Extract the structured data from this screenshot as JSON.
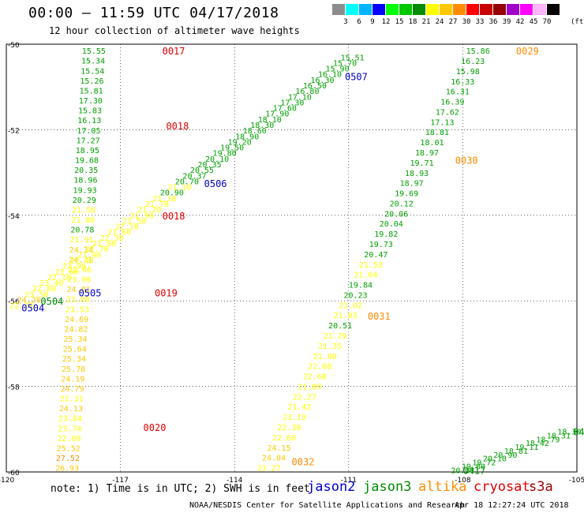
{
  "title": "00:00 – 11:59 UTC 04/17/2018",
  "subtitle": "12 hour collection of altimeter wave heights",
  "color_scale": {
    "labels": [
      "3",
      "6",
      "9",
      "12",
      "15",
      "18",
      "21",
      "24",
      "27",
      "30",
      "33",
      "36",
      "39",
      "42",
      "45",
      "70"
    ],
    "unit": "(ft)",
    "colors": [
      "#8c8c8c",
      "#00ffff",
      "#00b4ff",
      "#0000ff",
      "#00ff00",
      "#00c800",
      "#008c00",
      "#ffff00",
      "#ffc800",
      "#ff8c00",
      "#ff0000",
      "#c80000",
      "#960000",
      "#a000c8",
      "#ff00ff",
      "#ffb4ff",
      "#000000"
    ]
  },
  "note": "note: 1) Time is in UTC; 2) SWH is in feet",
  "satellites": [
    {
      "name": "jason2",
      "color": "#0000cc"
    },
    {
      "name": "jason3",
      "color": "#008c00"
    },
    {
      "name": "altika",
      "color": "#ff8c00"
    },
    {
      "name": "cryosat",
      "color": "#e00000"
    },
    {
      "name": "s3a",
      "color": "#a00000"
    }
  ],
  "footer_left": "NOAA/NESDIS Center for Satellite Applications and Research",
  "footer_right": "Apr 18 12:27:24 UTC 2018",
  "chart_data": {
    "type": "scatter",
    "title": "00:00 – 11:59 UTC 04/17/2018",
    "xlim": [
      -120,
      -105
    ],
    "ylim": [
      -60,
      -50
    ],
    "x_ticks": [
      "-120",
      "-117",
      "-114",
      "-111",
      "-108",
      "-105"
    ],
    "y_ticks": [
      "-50",
      "-52",
      "-54",
      "-56",
      "-58",
      "-60"
    ],
    "x_tick_values": [
      -120,
      -117,
      -114,
      -111,
      -108,
      -105
    ],
    "y_tick_values": [
      -50,
      -52,
      -54,
      -56,
      -58,
      -60
    ],
    "grid": "dotted",
    "tracks": [
      {
        "name": "cryosat 0017-0020",
        "color": "#00a000",
        "lon_start": -117.7,
        "lat_start": -50.15,
        "lon_end": -118.4,
        "lat_end": -59.9,
        "values": [
          "15.55",
          "15.34",
          "15.54",
          "15.26",
          "15.81",
          "17.30",
          "15.83",
          "16.13",
          "17.05",
          "17.27",
          "18.95",
          "19.68",
          "20.35",
          "18.96",
          "19.93",
          "20.29",
          "21.50",
          "21.80",
          "20.78",
          "21.91",
          "24.14",
          "24.71",
          "22.06",
          "23.00",
          "24.81",
          "23.08",
          "23.53",
          "24.69",
          "24.82",
          "25.34",
          "25.64",
          "25.34",
          "25.78",
          "24.19",
          "24.79",
          "22.31",
          "24.13",
          "23.84",
          "23.74",
          "22.09",
          "25.52",
          "27.52",
          "26.93"
        ]
      },
      {
        "name": "altika 0029-0032",
        "color": "#00a000",
        "lon_start": -107.6,
        "lat_start": -50.15,
        "lon_end": -113.1,
        "lat_end": -59.9,
        "values": [
          "15.86",
          "16.23",
          "15.98",
          "16.33",
          "16.31",
          "16.39",
          "17.62",
          "17.13",
          "18.81",
          "18.01",
          "18.97",
          "19.71",
          "18.93",
          "18.97",
          "19.69",
          "20.12",
          "20.06",
          "20.04",
          "19.82",
          "19.73",
          "20.47",
          "21.53",
          "21.04",
          "19.84",
          "20.23",
          "21.02",
          "21.03",
          "20.51",
          "21.29",
          "21.35",
          "21.00",
          "22.08",
          "22.68",
          "21.89",
          "22.27",
          "21.42",
          "23.19",
          "22.30",
          "22.60",
          "24.15",
          "24.04",
          "23.27"
        ]
      },
      {
        "name": "jason3 0417",
        "color": "#00a000",
        "lon_start": -105.2,
        "lat_start": -59.05,
        "lon_end": -108.0,
        "lat_end": -59.95,
        "values": [
          "18.30",
          "18.31",
          "18.79",
          "18.42",
          "19.11",
          "18.81",
          "20.90",
          "20.10",
          "19.72",
          "19.80",
          "20.38"
        ]
      },
      {
        "name": "jason2 0504-0507",
        "color": "#00a000",
        "lon_start": -119.6,
        "lat_start": -56.1,
        "lon_end": -110.9,
        "lat_end": -50.3,
        "values": [
          "22.79",
          "24.20",
          "23.50",
          "22.80",
          "23.40",
          "22.10",
          "23.60",
          "22.90",
          "22.40",
          "21.90",
          "22.70",
          "21.80",
          "22.30",
          "21.60",
          "22.10",
          "21.50",
          "21.90",
          "21.20",
          "21.70",
          "21.30",
          "20.90",
          "21.10",
          "20.70",
          "20.37",
          "20.55",
          "20.35",
          "20.10",
          "19.80",
          "19.50",
          "19.20",
          "18.90",
          "18.60",
          "18.30",
          "18.10",
          "17.90",
          "17.60",
          "17.30",
          "17.10",
          "16.80",
          "16.50",
          "16.30",
          "16.10",
          "15.90",
          "15.70",
          "15.51"
        ]
      }
    ],
    "track_labels": [
      {
        "text": "0017",
        "lon": -115.9,
        "lat": -50.15,
        "color": "#e00000"
      },
      {
        "text": "0018",
        "lon": -115.8,
        "lat": -51.9,
        "color": "#e00000"
      },
      {
        "text": "0018",
        "lon": -115.9,
        "lat": -54.0,
        "color": "#e00000"
      },
      {
        "text": "0019",
        "lon": -116.1,
        "lat": -55.8,
        "color": "#e00000"
      },
      {
        "text": "0020",
        "lon": -116.4,
        "lat": -58.95,
        "color": "#e00000"
      },
      {
        "text": "0029",
        "lon": -106.6,
        "lat": -50.15,
        "color": "#ff8c00"
      },
      {
        "text": "0030",
        "lon": -108.2,
        "lat": -52.7,
        "color": "#ff8c00"
      },
      {
        "text": "0031",
        "lon": -110.5,
        "lat": -56.35,
        "color": "#ff8c00"
      },
      {
        "text": "0032",
        "lon": -112.5,
        "lat": -59.75,
        "color": "#ff8c00"
      },
      {
        "text": "0417",
        "lon": -108.0,
        "lat": -59.95,
        "color": "#008c00"
      },
      {
        "text": "041",
        "lon": -105.1,
        "lat": -59.05,
        "color": "#008c00"
      },
      {
        "text": "0504",
        "lon": -119.6,
        "lat": -56.15,
        "color": "#0000cc"
      },
      {
        "text": "0504",
        "lon": -119.1,
        "lat": -56.0,
        "color": "#008c00"
      },
      {
        "text": "0505",
        "lon": -118.1,
        "lat": -55.8,
        "color": "#0000cc"
      },
      {
        "text": "0506",
        "lon": -114.8,
        "lat": -53.25,
        "color": "#0000cc"
      },
      {
        "text": "0507",
        "lon": -111.1,
        "lat": -50.75,
        "color": "#0000cc"
      }
    ]
  }
}
